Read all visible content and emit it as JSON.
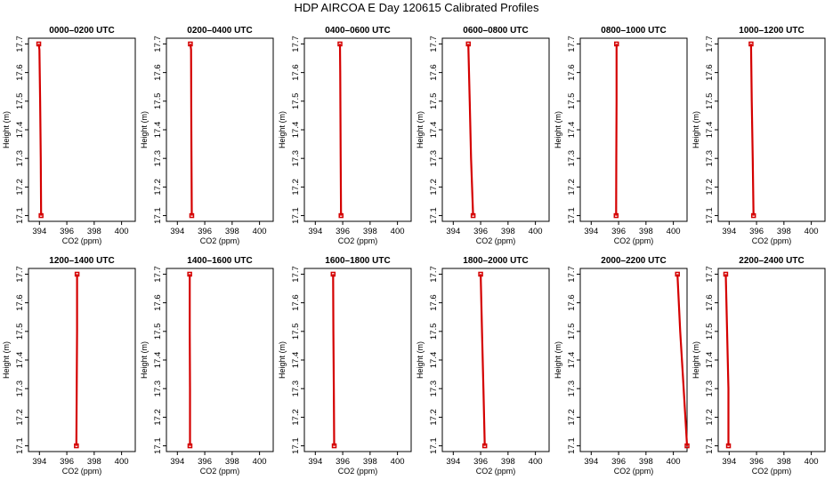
{
  "title": "HDP AIRCOA E  Day 120615  Calibrated Profiles",
  "colors": {
    "profile_line": "#d40000",
    "axes": "#000000",
    "background": "#ffffff"
  },
  "chart_data": [
    {
      "type": "line",
      "title": "0000–0200 UTC",
      "xlabel": "CO2 (ppm)",
      "ylabel": "Height (m)",
      "xlim": [
        393.2,
        401
      ],
      "ylim": [
        17.08,
        17.72
      ],
      "xticks": [
        394,
        396,
        398,
        400
      ],
      "yticks": [
        17.1,
        17.2,
        17.3,
        17.4,
        17.5,
        17.6,
        17.7
      ],
      "x": [
        393.95,
        394.0,
        394.05,
        394.1,
        394.12
      ],
      "y": [
        17.7,
        17.68,
        17.5,
        17.3,
        17.1
      ]
    },
    {
      "type": "line",
      "title": "0200–0400 UTC",
      "xlabel": "CO2 (ppm)",
      "ylabel": "Height (m)",
      "xlim": [
        393.2,
        401
      ],
      "ylim": [
        17.08,
        17.72
      ],
      "xticks": [
        394,
        396,
        398,
        400
      ],
      "yticks": [
        17.1,
        17.2,
        17.3,
        17.4,
        17.5,
        17.6,
        17.7
      ],
      "x": [
        394.95,
        395.0,
        395.02,
        395.05
      ],
      "y": [
        17.7,
        17.68,
        17.4,
        17.1
      ]
    },
    {
      "type": "line",
      "title": "0400–0600 UTC",
      "xlabel": "CO2 (ppm)",
      "ylabel": "Height (m)",
      "xlim": [
        393.2,
        401
      ],
      "ylim": [
        17.08,
        17.72
      ],
      "xticks": [
        394,
        396,
        398,
        400
      ],
      "yticks": [
        17.1,
        17.2,
        17.3,
        17.4,
        17.5,
        17.6,
        17.7
      ],
      "x": [
        395.8,
        395.82,
        395.85,
        395.88
      ],
      "y": [
        17.7,
        17.6,
        17.3,
        17.1
      ]
    },
    {
      "type": "line",
      "title": "0600–0800 UTC",
      "xlabel": "CO2 (ppm)",
      "ylabel": "Height (m)",
      "xlim": [
        393.2,
        401
      ],
      "ylim": [
        17.08,
        17.72
      ],
      "xticks": [
        394,
        396,
        398,
        400
      ],
      "yticks": [
        17.1,
        17.2,
        17.3,
        17.4,
        17.5,
        17.6,
        17.7
      ],
      "x": [
        395.1,
        395.2,
        395.3,
        395.45
      ],
      "y": [
        17.7,
        17.5,
        17.3,
        17.1
      ]
    },
    {
      "type": "line",
      "title": "0800–1000 UTC",
      "xlabel": "CO2 (ppm)",
      "ylabel": "Height (m)",
      "xlim": [
        393.2,
        401
      ],
      "ylim": [
        17.08,
        17.72
      ],
      "xticks": [
        394,
        396,
        398,
        400
      ],
      "yticks": [
        17.1,
        17.2,
        17.3,
        17.4,
        17.5,
        17.6,
        17.7
      ],
      "x": [
        395.85,
        395.85,
        395.83,
        395.82
      ],
      "y": [
        17.7,
        17.5,
        17.3,
        17.1
      ]
    },
    {
      "type": "line",
      "title": "1000–1200 UTC",
      "xlabel": "CO2 (ppm)",
      "ylabel": "Height (m)",
      "xlim": [
        393.2,
        401
      ],
      "ylim": [
        17.08,
        17.72
      ],
      "xticks": [
        394,
        396,
        398,
        400
      ],
      "yticks": [
        17.1,
        17.2,
        17.3,
        17.4,
        17.5,
        17.6,
        17.7
      ],
      "x": [
        395.6,
        395.65,
        395.72,
        395.78
      ],
      "y": [
        17.7,
        17.5,
        17.3,
        17.1
      ]
    },
    {
      "type": "line",
      "title": "1200–1400 UTC",
      "xlabel": "CO2 (ppm)",
      "ylabel": "Height (m)",
      "xlim": [
        393.2,
        401
      ],
      "ylim": [
        17.08,
        17.72
      ],
      "xticks": [
        394,
        396,
        398,
        400
      ],
      "yticks": [
        17.1,
        17.2,
        17.3,
        17.4,
        17.5,
        17.6,
        17.7
      ],
      "x": [
        396.75,
        396.75,
        396.72,
        396.7
      ],
      "y": [
        17.7,
        17.5,
        17.3,
        17.1
      ]
    },
    {
      "type": "line",
      "title": "1400–1600 UTC",
      "xlabel": "CO2 (ppm)",
      "ylabel": "Height (m)",
      "xlim": [
        393.2,
        401
      ],
      "ylim": [
        17.08,
        17.72
      ],
      "xticks": [
        394,
        396,
        398,
        400
      ],
      "yticks": [
        17.1,
        17.2,
        17.3,
        17.4,
        17.5,
        17.6,
        17.7
      ],
      "x": [
        394.9,
        394.9,
        394.92,
        394.92
      ],
      "y": [
        17.7,
        17.5,
        17.3,
        17.1
      ]
    },
    {
      "type": "line",
      "title": "1600–1800 UTC",
      "xlabel": "CO2 (ppm)",
      "ylabel": "Height (m)",
      "xlim": [
        393.2,
        401
      ],
      "ylim": [
        17.08,
        17.72
      ],
      "xticks": [
        394,
        396,
        398,
        400
      ],
      "yticks": [
        17.1,
        17.2,
        17.3,
        17.4,
        17.5,
        17.6,
        17.7
      ],
      "x": [
        395.3,
        395.32,
        395.35,
        395.38
      ],
      "y": [
        17.7,
        17.5,
        17.3,
        17.1
      ]
    },
    {
      "type": "line",
      "title": "1800–2000 UTC",
      "xlabel": "CO2 (ppm)",
      "ylabel": "Height (m)",
      "xlim": [
        393.2,
        401
      ],
      "ylim": [
        17.08,
        17.72
      ],
      "xticks": [
        394,
        396,
        398,
        400
      ],
      "yticks": [
        17.1,
        17.2,
        17.3,
        17.4,
        17.5,
        17.6,
        17.7
      ],
      "x": [
        396.0,
        396.1,
        396.2,
        396.3
      ],
      "y": [
        17.7,
        17.5,
        17.3,
        17.1
      ]
    },
    {
      "type": "line",
      "title": "2000–2200 UTC",
      "xlabel": "CO2 (ppm)",
      "ylabel": "Height (m)",
      "xlim": [
        393.2,
        401
      ],
      "ylim": [
        17.08,
        17.72
      ],
      "xticks": [
        394,
        396,
        398,
        400
      ],
      "yticks": [
        17.1,
        17.2,
        17.3,
        17.4,
        17.5,
        17.6,
        17.7
      ],
      "x": [
        400.3,
        400.5,
        400.75,
        401.0
      ],
      "y": [
        17.7,
        17.5,
        17.3,
        17.1
      ]
    },
    {
      "type": "line",
      "title": "2200–2400 UTC",
      "xlabel": "CO2 (ppm)",
      "ylabel": "Height (m)",
      "xlim": [
        393.2,
        401
      ],
      "ylim": [
        17.08,
        17.72
      ],
      "xticks": [
        394,
        396,
        398,
        400
      ],
      "yticks": [
        17.1,
        17.2,
        17.3,
        17.4,
        17.5,
        17.6,
        17.7
      ],
      "x": [
        393.75,
        393.85,
        393.95,
        393.95
      ],
      "y": [
        17.7,
        17.5,
        17.3,
        17.1
      ]
    }
  ]
}
